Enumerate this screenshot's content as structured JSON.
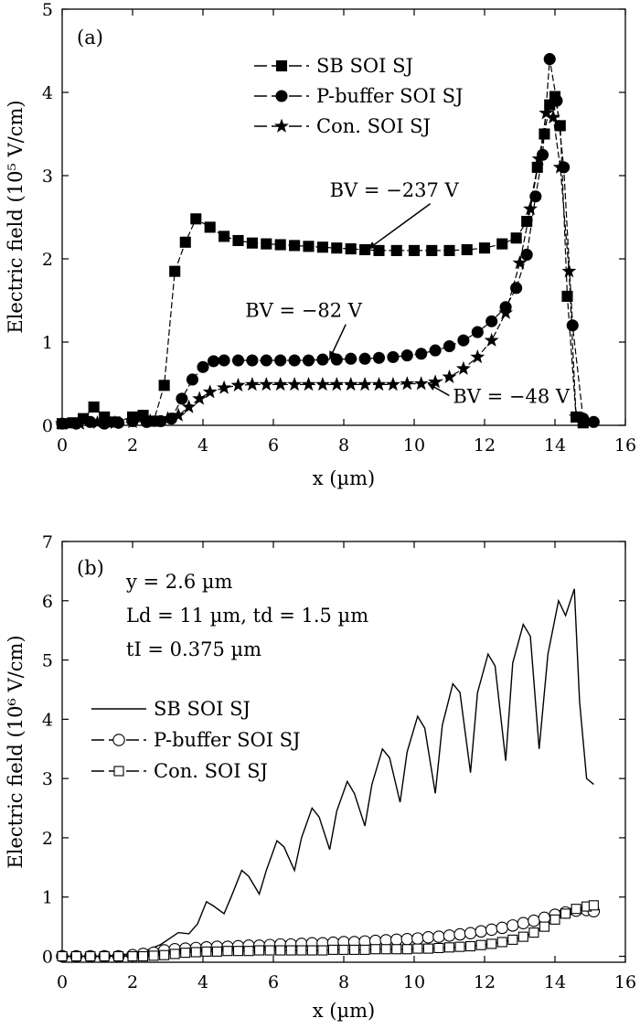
{
  "chart_data": [
    {
      "type": "line",
      "panel_label": "(a)",
      "xlabel": "x (µm)",
      "ylabel": "Electric field (10⁵ V/cm)",
      "xlim": [
        0,
        16
      ],
      "ylim": [
        0,
        5
      ],
      "xticks": [
        0,
        2,
        4,
        6,
        8,
        10,
        12,
        14,
        16
      ],
      "yticks": [
        0,
        1,
        2,
        3,
        4,
        5
      ],
      "grid": false,
      "legend_position": "top-right",
      "series": [
        {
          "name": "SB SOI SJ",
          "marker": "square",
          "filled": true,
          "x": [
            0,
            0.3,
            0.6,
            0.9,
            1.2,
            1.5,
            2.0,
            2.3,
            2.6,
            2.9,
            3.2,
            3.5,
            3.8,
            4.2,
            4.6,
            5.0,
            5.4,
            5.8,
            6.2,
            6.6,
            7.0,
            7.4,
            7.8,
            8.2,
            8.6,
            9.0,
            9.5,
            10.0,
            10.5,
            11.0,
            11.5,
            12.0,
            12.5,
            12.9,
            13.2,
            13.5,
            13.7,
            13.85,
            14.0,
            14.15,
            14.35,
            14.6,
            14.8
          ],
          "y": [
            0.02,
            0.03,
            0.08,
            0.22,
            0.1,
            0.04,
            0.1,
            0.12,
            0.05,
            0.48,
            1.85,
            2.2,
            2.48,
            2.38,
            2.27,
            2.22,
            2.19,
            2.18,
            2.17,
            2.16,
            2.15,
            2.14,
            2.13,
            2.12,
            2.11,
            2.1,
            2.1,
            2.1,
            2.1,
            2.1,
            2.11,
            2.13,
            2.18,
            2.25,
            2.45,
            3.1,
            3.5,
            3.85,
            3.95,
            3.6,
            1.55,
            0.1,
            0.03
          ]
        },
        {
          "name": "P-buffer SOI SJ",
          "marker": "circle",
          "filled": true,
          "x": [
            0,
            0.4,
            0.8,
            1.2,
            1.6,
            2.0,
            2.4,
            2.8,
            3.1,
            3.4,
            3.7,
            4.0,
            4.3,
            4.6,
            5.0,
            5.4,
            5.8,
            6.2,
            6.6,
            7.0,
            7.4,
            7.8,
            8.2,
            8.6,
            9.0,
            9.4,
            9.8,
            10.2,
            10.6,
            11.0,
            11.4,
            11.8,
            12.2,
            12.6,
            12.9,
            13.2,
            13.45,
            13.65,
            13.85,
            14.05,
            14.25,
            14.5,
            14.8,
            15.1
          ],
          "y": [
            0.02,
            0.02,
            0.04,
            0.02,
            0.03,
            0.05,
            0.04,
            0.05,
            0.08,
            0.32,
            0.55,
            0.7,
            0.77,
            0.78,
            0.78,
            0.78,
            0.78,
            0.78,
            0.78,
            0.78,
            0.79,
            0.79,
            0.8,
            0.8,
            0.81,
            0.82,
            0.84,
            0.86,
            0.9,
            0.95,
            1.02,
            1.12,
            1.25,
            1.42,
            1.65,
            2.05,
            2.75,
            3.25,
            4.4,
            3.9,
            3.1,
            1.2,
            0.08,
            0.04
          ]
        },
        {
          "name": "Con. SOI SJ",
          "marker": "star",
          "filled": true,
          "x": [
            0,
            0.5,
            1.0,
            1.5,
            2.0,
            2.5,
            3.0,
            3.3,
            3.6,
            3.9,
            4.2,
            4.6,
            5.0,
            5.4,
            5.8,
            6.2,
            6.6,
            7.0,
            7.4,
            7.8,
            8.2,
            8.6,
            9.0,
            9.4,
            9.8,
            10.2,
            10.6,
            11.0,
            11.4,
            11.8,
            12.2,
            12.6,
            13.0,
            13.3,
            13.55,
            13.75,
            13.95,
            14.15,
            14.4,
            14.6
          ],
          "y": [
            0.02,
            0.02,
            0.03,
            0.03,
            0.04,
            0.05,
            0.08,
            0.12,
            0.22,
            0.32,
            0.4,
            0.45,
            0.48,
            0.49,
            0.49,
            0.49,
            0.49,
            0.49,
            0.49,
            0.49,
            0.49,
            0.49,
            0.49,
            0.49,
            0.5,
            0.5,
            0.52,
            0.58,
            0.68,
            0.82,
            1.02,
            1.35,
            1.95,
            2.6,
            3.2,
            3.75,
            3.7,
            3.1,
            1.85,
            0.1
          ]
        }
      ],
      "annotations": [
        {
          "text": "BV = −237 V",
          "x": 7.6,
          "y": 2.75,
          "arrow_to": [
            8.7,
            2.12
          ]
        },
        {
          "text": "BV = −82 V",
          "x": 5.2,
          "y": 1.3,
          "arrow_to": [
            7.6,
            0.8
          ]
        },
        {
          "text": "BV = −48 V",
          "x": 11.1,
          "y": 0.27,
          "arrow_to": [
            10.4,
            0.5
          ]
        }
      ]
    },
    {
      "type": "line",
      "panel_label": "(b)",
      "xlabel": "x (µm)",
      "ylabel": "Electric field (10⁶ V/cm)",
      "xlim": [
        0,
        16
      ],
      "ylim": [
        -0.1,
        7
      ],
      "xticks": [
        0,
        2,
        4,
        6,
        8,
        10,
        12,
        14,
        16
      ],
      "yticks": [
        0,
        1,
        2,
        3,
        4,
        5,
        6,
        7
      ],
      "grid": false,
      "legend_position": "middle-left",
      "info_lines": [
        "y = 2.6 µm",
        "Ld = 11 µm, td = 1.5 µm",
        "tI = 0.375 µm"
      ],
      "series": [
        {
          "name": "SB SOI SJ",
          "marker": "none",
          "x": [
            0,
            1.0,
            1.6,
            2.0,
            2.4,
            2.8,
            3.1,
            3.3,
            3.6,
            3.85,
            4.1,
            4.3,
            4.6,
            4.8,
            5.1,
            5.3,
            5.6,
            5.8,
            6.1,
            6.3,
            6.6,
            6.8,
            7.1,
            7.3,
            7.6,
            7.8,
            8.1,
            8.3,
            8.6,
            8.8,
            9.1,
            9.3,
            9.6,
            9.8,
            10.1,
            10.3,
            10.6,
            10.8,
            11.1,
            11.3,
            11.6,
            11.8,
            12.1,
            12.3,
            12.6,
            12.8,
            13.1,
            13.3,
            13.55,
            13.8,
            14.1,
            14.3,
            14.55,
            14.7,
            14.9,
            15.1
          ],
          "y": [
            0.0,
            0.0,
            0.02,
            0.05,
            0.1,
            0.2,
            0.32,
            0.4,
            0.38,
            0.55,
            0.92,
            0.85,
            0.72,
            1.0,
            1.45,
            1.35,
            1.05,
            1.45,
            1.95,
            1.85,
            1.45,
            2.0,
            2.5,
            2.35,
            1.8,
            2.45,
            2.95,
            2.75,
            2.2,
            2.9,
            3.5,
            3.35,
            2.6,
            3.45,
            4.05,
            3.85,
            2.75,
            3.9,
            4.6,
            4.45,
            3.1,
            4.45,
            5.1,
            4.9,
            3.3,
            4.95,
            5.6,
            5.4,
            3.5,
            5.1,
            6.0,
            5.75,
            6.2,
            4.3,
            3.0,
            2.9
          ]
        },
        {
          "name": "P-buffer SOI SJ",
          "marker": "circle",
          "filled": false,
          "x": [
            0,
            0.4,
            0.8,
            1.2,
            1.6,
            2.0,
            2.3,
            2.6,
            2.9,
            3.2,
            3.5,
            3.8,
            4.1,
            4.4,
            4.7,
            5.0,
            5.3,
            5.6,
            5.9,
            6.2,
            6.5,
            6.8,
            7.1,
            7.4,
            7.7,
            8.0,
            8.3,
            8.6,
            8.9,
            9.2,
            9.5,
            9.8,
            10.1,
            10.4,
            10.7,
            11.0,
            11.3,
            11.6,
            11.9,
            12.2,
            12.5,
            12.8,
            13.1,
            13.4,
            13.7,
            14.0,
            14.3,
            14.6,
            14.9,
            15.1
          ],
          "y": [
            0.0,
            0.0,
            0.0,
            0.0,
            0.0,
            0.02,
            0.04,
            0.06,
            0.1,
            0.12,
            0.13,
            0.14,
            0.15,
            0.16,
            0.16,
            0.17,
            0.18,
            0.18,
            0.19,
            0.2,
            0.2,
            0.21,
            0.22,
            0.22,
            0.23,
            0.24,
            0.24,
            0.25,
            0.26,
            0.27,
            0.28,
            0.29,
            0.3,
            0.32,
            0.33,
            0.35,
            0.37,
            0.39,
            0.42,
            0.45,
            0.48,
            0.52,
            0.56,
            0.6,
            0.65,
            0.7,
            0.74,
            0.77,
            0.78,
            0.76
          ]
        },
        {
          "name": "Con. SOI SJ",
          "marker": "square",
          "filled": false,
          "x": [
            0,
            0.4,
            0.8,
            1.2,
            1.6,
            2.0,
            2.3,
            2.6,
            2.9,
            3.2,
            3.5,
            3.8,
            4.1,
            4.4,
            4.7,
            5.0,
            5.3,
            5.6,
            5.9,
            6.2,
            6.5,
            6.8,
            7.1,
            7.4,
            7.7,
            8.0,
            8.3,
            8.6,
            8.9,
            9.2,
            9.5,
            9.8,
            10.1,
            10.4,
            10.7,
            11.0,
            11.3,
            11.6,
            11.9,
            12.2,
            12.5,
            12.8,
            13.1,
            13.4,
            13.7,
            14.0,
            14.3,
            14.6,
            14.9,
            15.1
          ],
          "y": [
            0.0,
            0.0,
            0.0,
            0.0,
            0.0,
            0.0,
            0.0,
            0.01,
            0.02,
            0.04,
            0.06,
            0.07,
            0.08,
            0.08,
            0.09,
            0.09,
            0.09,
            0.1,
            0.1,
            0.1,
            0.1,
            0.1,
            0.1,
            0.1,
            0.11,
            0.11,
            0.11,
            0.11,
            0.12,
            0.12,
            0.12,
            0.12,
            0.13,
            0.13,
            0.14,
            0.15,
            0.16,
            0.17,
            0.19,
            0.21,
            0.24,
            0.28,
            0.33,
            0.4,
            0.5,
            0.62,
            0.72,
            0.8,
            0.84,
            0.86
          ]
        }
      ]
    }
  ]
}
